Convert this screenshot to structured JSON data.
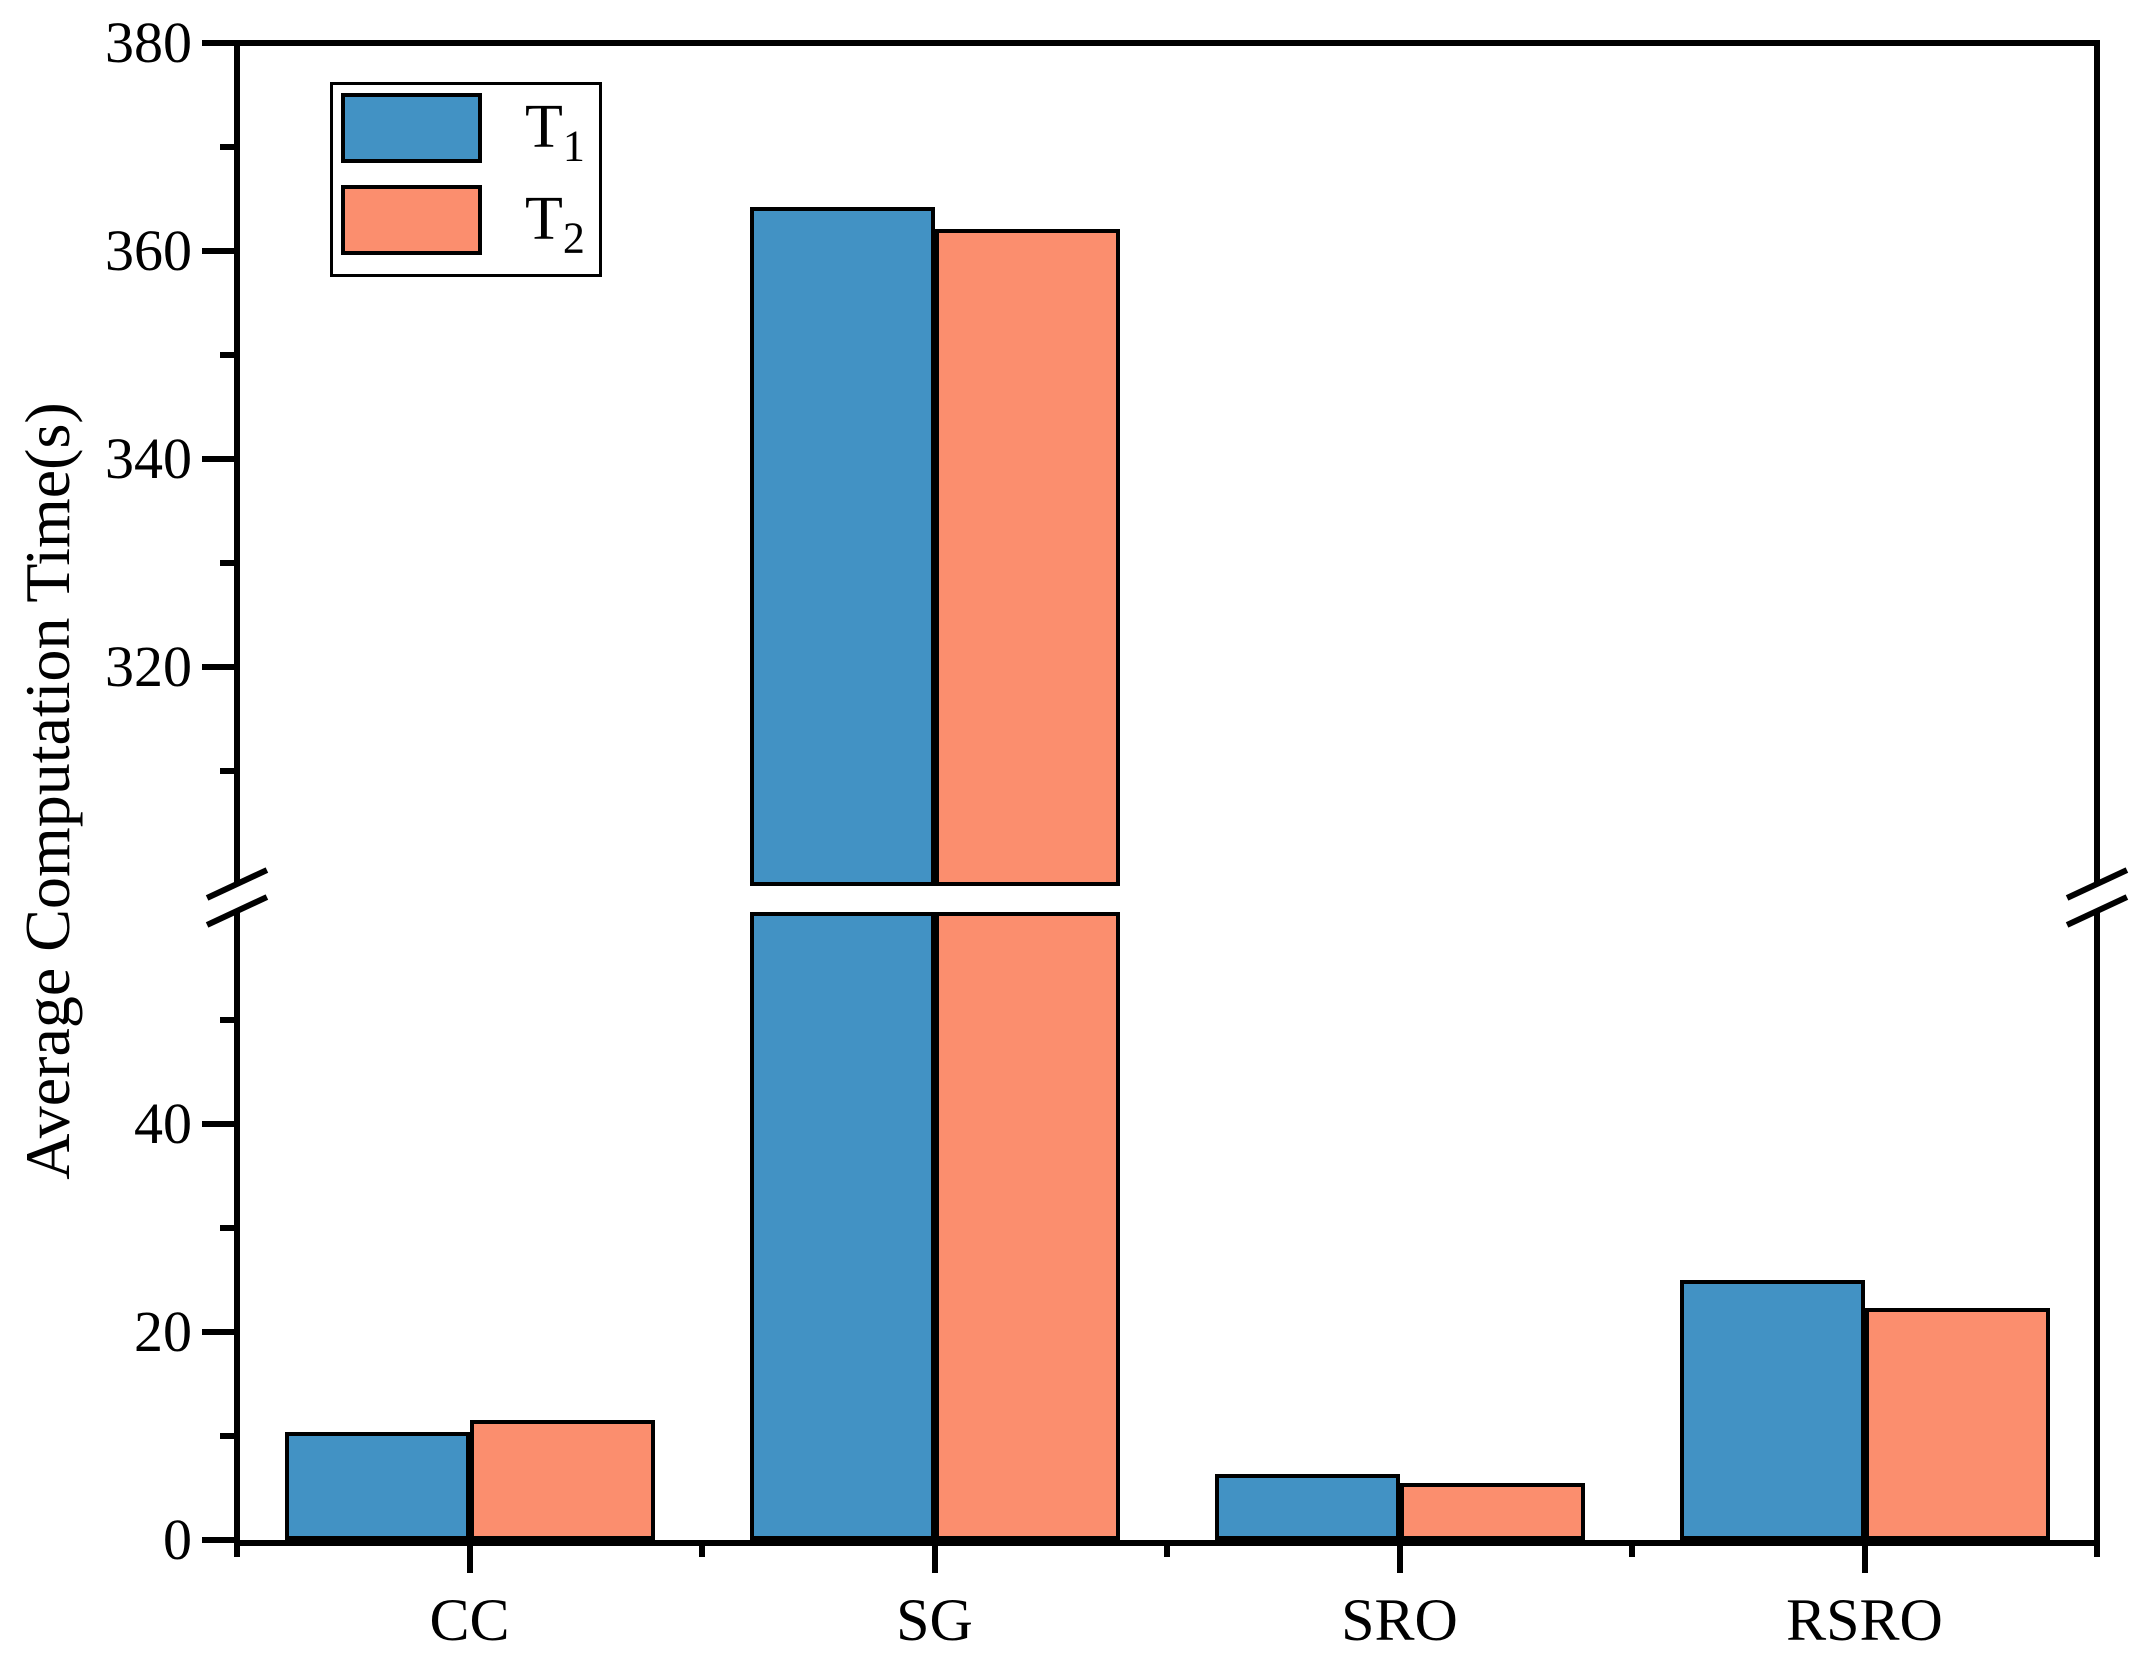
{
  "figure": {
    "background": "#FFFFFF",
    "axis_color": "#000000"
  },
  "chart_data": {
    "type": "bar",
    "title": "",
    "xlabel": "",
    "ylabel": "Average Computation Time(s)",
    "categories": [
      "CC",
      "SG",
      "SRO",
      "RSRO"
    ],
    "series": [
      {
        "name": "T1",
        "legend_base": "T",
        "legend_sub": "1",
        "color": "#4292C4",
        "edge_color": "#000000",
        "values": [
          10.4,
          364.2,
          6.3,
          25.0
        ]
      },
      {
        "name": "T2",
        "legend_base": "T",
        "legend_sub": "2",
        "color": "#FB8E6E",
        "edge_color": "#000000",
        "values": [
          11.5,
          362.1,
          5.5,
          22.3
        ]
      }
    ],
    "y_axis": {
      "lower_section": {
        "range": [
          0,
          60
        ],
        "major_ticks": [
          0,
          20,
          40
        ],
        "minor_ticks": [
          10,
          30,
          50
        ]
      },
      "upper_section": {
        "range": [
          300,
          380
        ],
        "major_ticks": [
          320,
          340,
          360,
          380
        ],
        "minor_ticks": [
          310,
          330,
          350,
          370
        ]
      },
      "has_break": true
    },
    "x_axis": {
      "tick_labels": [
        "CC",
        "SG",
        "SRO",
        "RSRO"
      ]
    },
    "grid": false,
    "legend_position": "upper-left"
  }
}
